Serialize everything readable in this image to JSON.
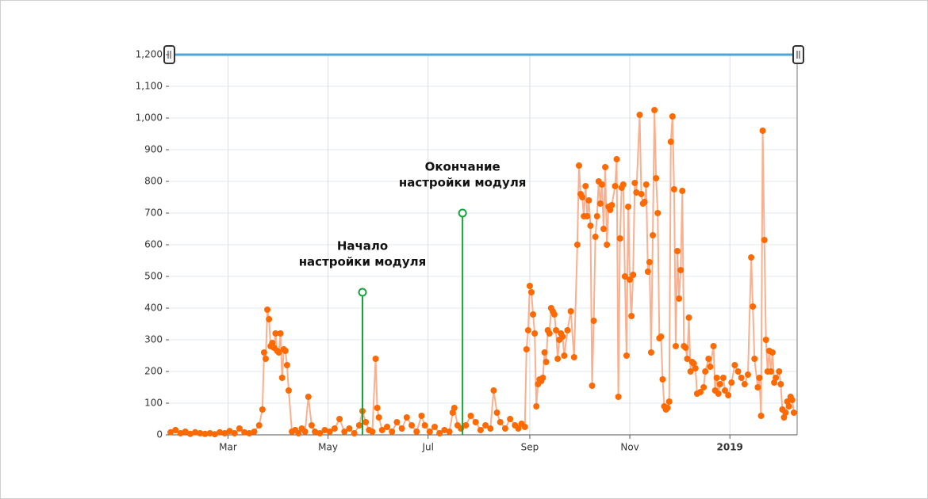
{
  "chart_data": {
    "type": "line",
    "x": [
      24,
      27,
      30,
      33,
      36,
      39,
      42,
      45,
      48,
      51,
      54,
      57,
      60,
      63,
      66,
      69,
      72,
      75,
      78,
      80,
      81,
      82,
      83,
      84,
      85,
      86,
      87,
      88,
      89,
      90,
      91,
      92,
      93,
      94,
      95,
      96,
      98,
      100,
      102,
      104,
      106,
      108,
      110,
      112,
      115,
      118,
      121,
      124,
      127,
      130,
      133,
      136,
      139,
      141,
      143,
      145,
      147,
      149,
      150,
      151,
      153,
      156,
      159,
      162,
      165,
      168,
      171,
      174,
      177,
      179,
      182,
      185,
      188,
      191,
      194,
      196,
      197,
      199,
      201,
      204,
      207,
      210,
      213,
      216,
      219,
      221,
      223,
      225,
      228,
      231,
      234,
      236,
      238,
      240,
      241,
      242,
      243,
      244,
      245,
      246,
      247,
      248,
      249,
      250,
      251,
      252,
      253,
      254,
      255,
      256,
      257,
      258,
      259,
      260,
      261,
      262,
      263,
      264,
      266,
      268,
      270,
      272,
      273,
      274,
      275,
      276,
      277,
      278,
      279,
      280,
      281,
      282,
      283,
      284,
      285,
      286,
      287,
      288,
      289,
      290,
      291,
      292,
      293,
      295,
      296,
      297,
      298,
      299,
      300,
      301,
      302,
      303,
      304,
      305,
      306,
      307,
      308,
      310,
      311,
      312,
      313,
      314,
      315,
      316,
      317,
      318,
      319,
      320,
      321,
      322,
      323,
      324,
      325,
      326,
      327,
      328,
      329,
      330,
      331,
      332,
      333,
      334,
      335,
      336,
      337,
      338,
      339,
      340,
      341,
      342,
      343,
      344,
      345,
      347,
      349,
      350,
      352,
      353,
      355,
      356,
      357,
      358,
      359,
      361,
      362,
      364,
      366,
      368,
      370,
      372,
      374,
      376,
      378,
      379,
      380,
      382,
      383,
      384,
      385,
      386,
      387,
      388,
      389,
      390,
      391,
      392,
      393,
      395,
      396,
      397,
      398,
      399,
      400,
      401,
      402,
      403,
      404
    ],
    "values": [
      8,
      15,
      5,
      10,
      3,
      8,
      5,
      3,
      5,
      2,
      8,
      5,
      12,
      5,
      20,
      8,
      5,
      10,
      30,
      80,
      260,
      240,
      395,
      365,
      280,
      290,
      275,
      320,
      265,
      260,
      320,
      180,
      270,
      265,
      220,
      140,
      10,
      15,
      5,
      20,
      10,
      120,
      30,
      10,
      5,
      15,
      10,
      20,
      50,
      10,
      20,
      5,
      30,
      75,
      40,
      15,
      10,
      240,
      85,
      55,
      15,
      25,
      10,
      40,
      20,
      55,
      30,
      10,
      60,
      30,
      10,
      25,
      5,
      15,
      10,
      70,
      85,
      30,
      20,
      30,
      60,
      40,
      15,
      30,
      20,
      140,
      70,
      40,
      20,
      50,
      30,
      20,
      35,
      25,
      270,
      330,
      470,
      450,
      380,
      320,
      90,
      160,
      175,
      170,
      180,
      260,
      230,
      330,
      320,
      400,
      390,
      380,
      330,
      240,
      300,
      320,
      310,
      250,
      330,
      390,
      245,
      600,
      850,
      760,
      750,
      690,
      785,
      690,
      740,
      660,
      155,
      360,
      625,
      690,
      800,
      730,
      790,
      650,
      845,
      600,
      720,
      710,
      725,
      785,
      870,
      120,
      620,
      780,
      790,
      500,
      250,
      720,
      490,
      375,
      505,
      795,
      765,
      1010,
      760,
      730,
      735,
      790,
      515,
      545,
      260,
      630,
      1025,
      810,
      700,
      305,
      310,
      175,
      90,
      80,
      85,
      105,
      925,
      1005,
      775,
      280,
      580,
      430,
      520,
      770,
      280,
      275,
      240,
      370,
      200,
      230,
      225,
      210,
      130,
      135,
      150,
      200,
      240,
      215,
      280,
      140,
      180,
      130,
      160,
      180,
      140,
      125,
      165,
      220,
      200,
      180,
      160,
      190,
      560,
      405,
      240,
      150,
      180,
      60,
      960,
      615,
      300,
      200,
      265,
      200,
      260,
      165,
      180,
      200,
      160,
      80,
      55,
      70,
      105,
      90,
      120,
      110,
      70
    ],
    "color": "#ff6a00",
    "line_color": "#f9b08f",
    "xlim": [
      23,
      406
    ],
    "xticks": [
      {
        "value": 59,
        "label": "Mar"
      },
      {
        "value": 120,
        "label": "May"
      },
      {
        "value": 181,
        "label": "Jul"
      },
      {
        "value": 243,
        "label": "Sep"
      },
      {
        "value": 304,
        "label": "Nov"
      },
      {
        "value": 365,
        "label": "2019"
      }
    ],
    "ylim": [
      0,
      1200
    ],
    "yticks": [
      0,
      100,
      200,
      300,
      400,
      500,
      600,
      700,
      800,
      900,
      {
        "value": 1000,
        "label": "1,000"
      },
      {
        "value": 1100,
        "label": "1,100"
      },
      {
        "value": 1200,
        "label": "1,200"
      }
    ],
    "grid": true,
    "annotations": [
      {
        "x": 141,
        "y": 450,
        "text": [
          "Начало",
          "настройки модуля"
        ],
        "color": "#17a33a"
      },
      {
        "x": 202,
        "y": 700,
        "text": [
          "Окончание",
          "настройки модуля"
        ],
        "color": "#17a33a"
      }
    ]
  }
}
